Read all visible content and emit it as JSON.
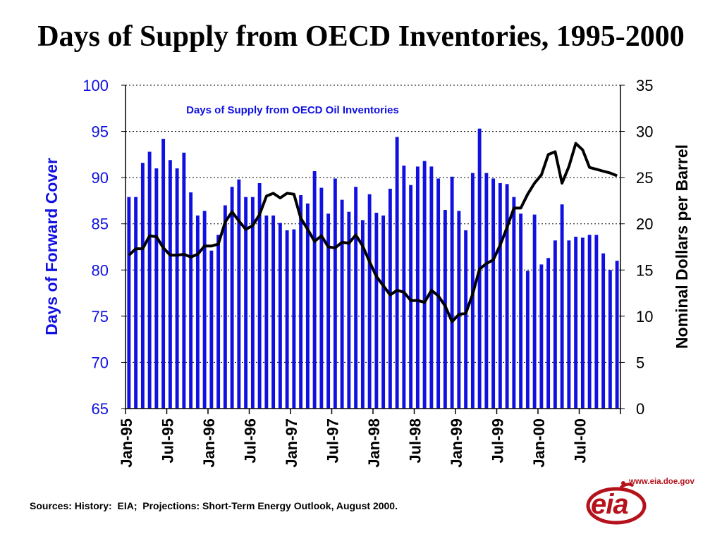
{
  "page": {
    "title": "Days of Supply from OECD Inventories, 1995-2000"
  },
  "footer": {
    "sources": "Sources: History:  EIA;  Projections: Short-Term Energy Outlook, August 2000."
  },
  "logo": {
    "url": "www.eia.doe.gov",
    "text": "eia",
    "color": "#b5121b",
    "icon": "eia-logo-icon"
  },
  "colors": {
    "bars": "#1010e0",
    "line": "#000000",
    "left_axis_text": "#1010e0",
    "right_axis_text": "#000000"
  },
  "chart_data": {
    "type": "bar",
    "title": "Days of Supply from OECD Oil Inventories",
    "ylabel": "Days of Forward Cover",
    "y2label": "Nominal Dollars per Barrel",
    "ylim": [
      65,
      100
    ],
    "y2lim": [
      0,
      35
    ],
    "yticks": [
      "65",
      "70",
      "75",
      "80",
      "85",
      "90",
      "95",
      "100"
    ],
    "y2ticks": [
      "0",
      "5",
      "10",
      "15",
      "20",
      "25",
      "30",
      "35"
    ],
    "grid": "horizontal dotted",
    "xticklabels": [
      "Jan-95",
      "Jul-95",
      "Jan-96",
      "Jul-96",
      "Jan-97",
      "Jul-97",
      "Jan-98",
      "Jul-98",
      "Jan-99",
      "Jul-99",
      "Jan-00",
      "Jul-00"
    ],
    "months": [
      "Jan-95",
      "Feb-95",
      "Mar-95",
      "Apr-95",
      "May-95",
      "Jun-95",
      "Jul-95",
      "Aug-95",
      "Sep-95",
      "Oct-95",
      "Nov-95",
      "Dec-95",
      "Jan-96",
      "Feb-96",
      "Mar-96",
      "Apr-96",
      "May-96",
      "Jun-96",
      "Jul-96",
      "Aug-96",
      "Sep-96",
      "Oct-96",
      "Nov-96",
      "Dec-96",
      "Jan-97",
      "Feb-97",
      "Mar-97",
      "Apr-97",
      "May-97",
      "Jun-97",
      "Jul-97",
      "Aug-97",
      "Sep-97",
      "Oct-97",
      "Nov-97",
      "Dec-97",
      "Jan-98",
      "Feb-98",
      "Mar-98",
      "Apr-98",
      "May-98",
      "Jun-98",
      "Jul-98",
      "Aug-98",
      "Sep-98",
      "Oct-98",
      "Nov-98",
      "Dec-98",
      "Jan-99",
      "Feb-99",
      "Mar-99",
      "Apr-99",
      "May-99",
      "Jun-99",
      "Jul-99",
      "Aug-99",
      "Sep-99",
      "Oct-99",
      "Nov-99",
      "Dec-99",
      "Jan-00",
      "Feb-00",
      "Mar-00",
      "Apr-00",
      "May-00",
      "Jun-00",
      "Jul-00",
      "Aug-00",
      "Sep-00",
      "Oct-00",
      "Nov-00",
      "Dec-00"
    ],
    "series": [
      {
        "name": "Days of Supply from OECD Oil Inventories",
        "axis": "left",
        "kind": "bar",
        "values": [
          87.9,
          87.9,
          91.6,
          92.8,
          91.0,
          94.2,
          91.9,
          91.0,
          92.7,
          88.4,
          85.9,
          86.4,
          82.1,
          83.8,
          87.0,
          89.0,
          89.8,
          87.9,
          87.9,
          89.4,
          85.9,
          85.9,
          85.1,
          84.3,
          84.4,
          88.1,
          87.2,
          90.7,
          88.9,
          86.1,
          89.9,
          87.6,
          86.3,
          89.0,
          85.4,
          88.2,
          86.2,
          85.9,
          88.8,
          94.4,
          91.3,
          89.2,
          91.2,
          91.8,
          91.2,
          89.9,
          86.5,
          90.1,
          86.4,
          84.3,
          90.5,
          95.3,
          90.5,
          89.9,
          89.4,
          89.3,
          87.9,
          86.1,
          79.9,
          86.0,
          80.6,
          81.3,
          83.2,
          87.1,
          83.2,
          83.6,
          83.5,
          83.8,
          83.8,
          81.8,
          80.0,
          81.0
        ]
      },
      {
        "name": "Nominal Dollars per Barrel",
        "axis": "right",
        "kind": "line",
        "values": [
          16.6,
          17.3,
          17.3,
          18.7,
          18.6,
          17.4,
          16.6,
          16.6,
          16.7,
          16.4,
          16.7,
          17.6,
          17.6,
          17.8,
          20.2,
          21.3,
          20.3,
          19.4,
          19.8,
          21.0,
          23.0,
          23.3,
          22.8,
          23.3,
          23.2,
          20.6,
          19.4,
          18.1,
          18.7,
          17.5,
          17.4,
          18.0,
          17.9,
          18.8,
          17.6,
          15.9,
          14.3,
          13.3,
          12.3,
          12.8,
          12.6,
          11.7,
          11.7,
          11.5,
          12.8,
          12.2,
          11.1,
          9.4,
          10.2,
          10.3,
          12.4,
          15.1,
          15.7,
          16.1,
          17.7,
          19.6,
          21.7,
          21.7,
          23.2,
          24.4,
          25.3,
          27.5,
          27.8,
          24.4,
          26.2,
          28.7,
          28.0,
          26.1,
          25.9,
          25.7,
          25.5,
          25.2
        ]
      }
    ]
  }
}
